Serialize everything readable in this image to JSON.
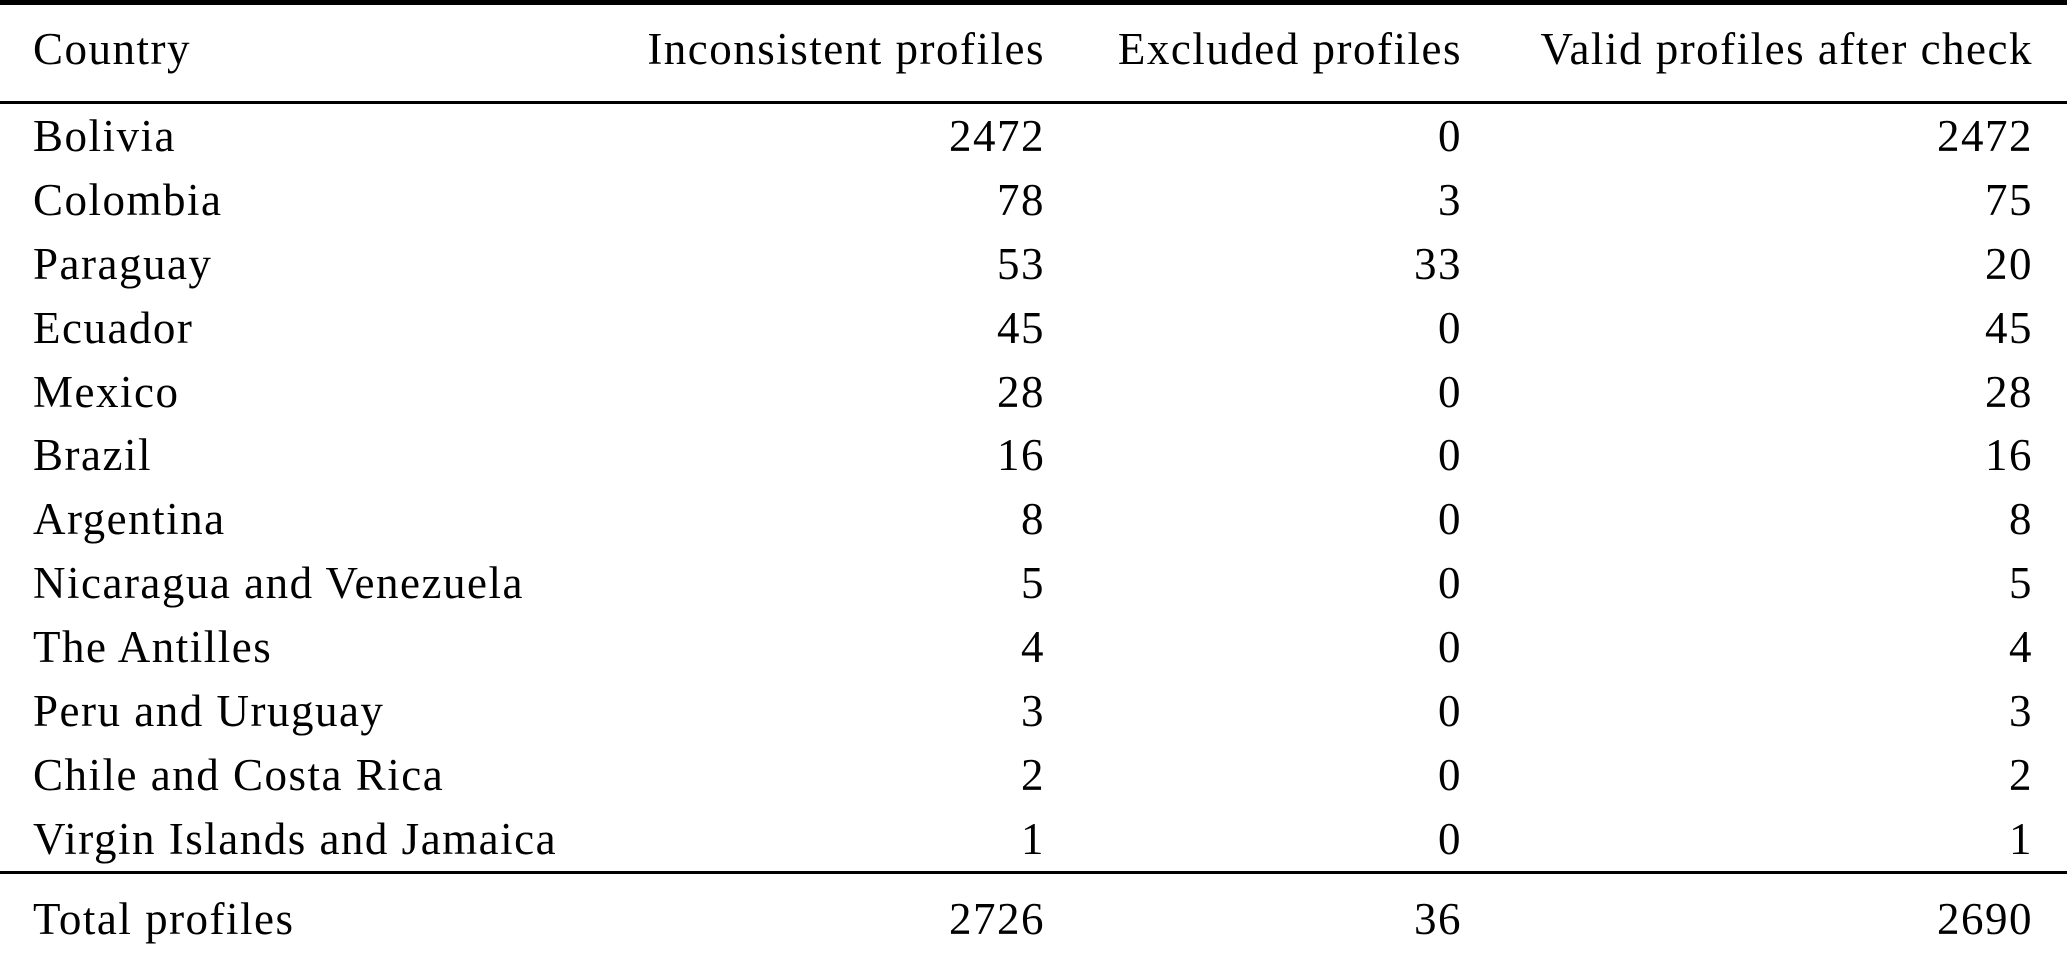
{
  "table": {
    "columns": [
      {
        "label": "Country"
      },
      {
        "label": "Inconsistent profiles"
      },
      {
        "label": "Excluded profiles"
      },
      {
        "label": "Valid profiles after check"
      }
    ],
    "rows": [
      {
        "country": "Bolivia",
        "inconsistent": 2472,
        "excluded": 0,
        "valid": 2472
      },
      {
        "country": "Colombia",
        "inconsistent": 78,
        "excluded": 3,
        "valid": 75
      },
      {
        "country": "Paraguay",
        "inconsistent": 53,
        "excluded": 33,
        "valid": 20
      },
      {
        "country": "Ecuador",
        "inconsistent": 45,
        "excluded": 0,
        "valid": 45
      },
      {
        "country": "Mexico",
        "inconsistent": 28,
        "excluded": 0,
        "valid": 28
      },
      {
        "country": "Brazil",
        "inconsistent": 16,
        "excluded": 0,
        "valid": 16
      },
      {
        "country": "Argentina",
        "inconsistent": 8,
        "excluded": 0,
        "valid": 8
      },
      {
        "country": "Nicaragua and Venezuela",
        "inconsistent": 5,
        "excluded": 0,
        "valid": 5
      },
      {
        "country": "The Antilles",
        "inconsistent": 4,
        "excluded": 0,
        "valid": 4
      },
      {
        "country": "Peru and Uruguay",
        "inconsistent": 3,
        "excluded": 0,
        "valid": 3
      },
      {
        "country": "Chile and Costa Rica",
        "inconsistent": 2,
        "excluded": 0,
        "valid": 2
      },
      {
        "country": "Virgin Islands and Jamaica",
        "inconsistent": 1,
        "excluded": 0,
        "valid": 1
      }
    ],
    "total": {
      "label": "Total profiles",
      "inconsistent": 2726,
      "excluded": 36,
      "valid": 2690
    }
  },
  "colors": {
    "background": "#ffffff",
    "text": "#000000",
    "rule": "#000000"
  }
}
